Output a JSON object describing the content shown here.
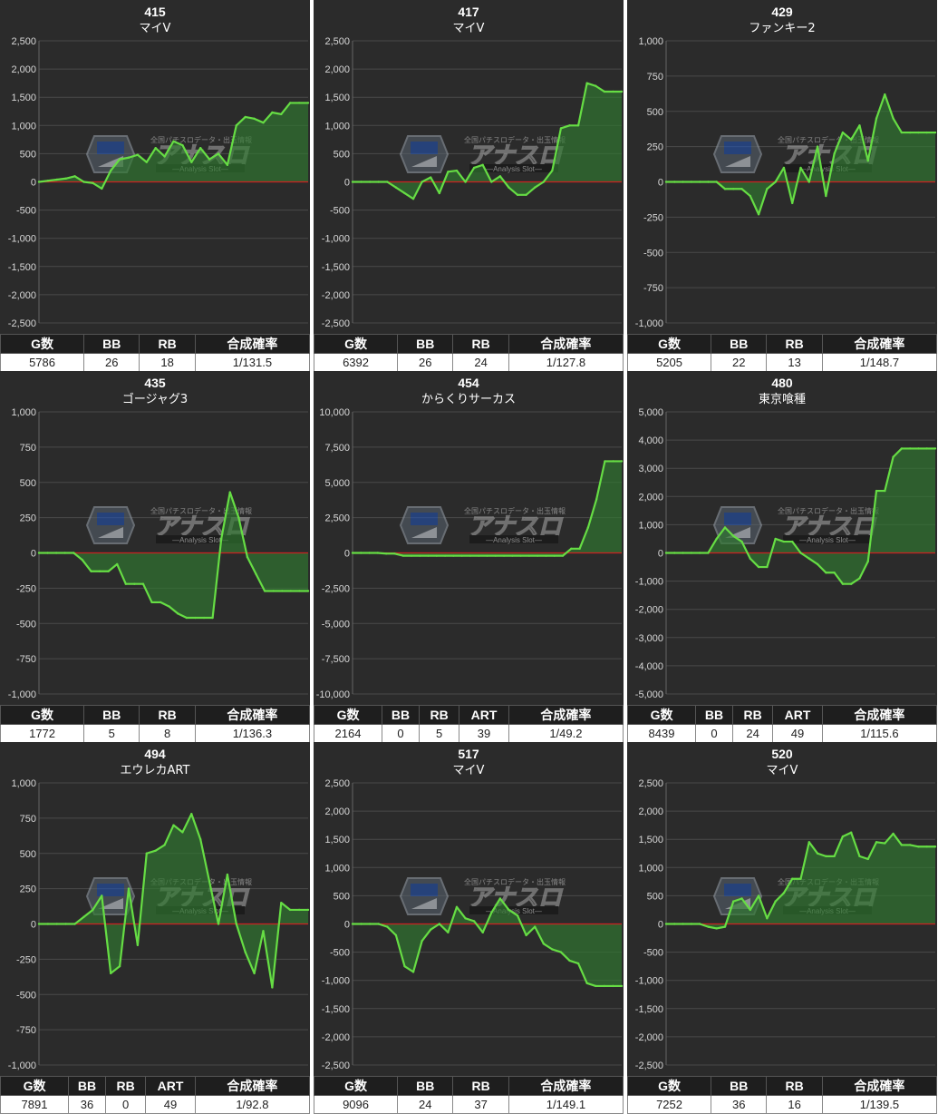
{
  "colors": {
    "background": "#2b2b2b",
    "grid": "#4a4a4a",
    "line": "#66dd44",
    "fill": "#2f7a2f",
    "zero_line": "#cc2222",
    "text": "#ffffff",
    "axis_text": "#d8d8d8"
  },
  "watermark": {
    "brand": "アナスロ",
    "tagline": "全国パチスロデータ・出玉情報",
    "subtitle": "—Analysis Slot—"
  },
  "chart_data": [
    {
      "type": "area",
      "title": "415",
      "subtitle": "マイV",
      "ylim": [
        -2500,
        2500
      ],
      "yticks": [
        2500,
        2000,
        1500,
        1000,
        500,
        0,
        -500,
        -1000,
        -1500,
        -2000,
        -2500
      ],
      "ytick_labels": [
        "2,500",
        "2,000",
        "1,500",
        "1,000",
        "500",
        "0",
        "-500",
        "-1,000",
        "-1,500",
        "-2,000",
        "-2,500"
      ],
      "y": [
        0,
        20,
        40,
        60,
        100,
        0,
        -20,
        -120,
        200,
        400,
        430,
        480,
        350,
        600,
        450,
        720,
        650,
        350,
        600,
        400,
        500,
        300,
        1000,
        1150,
        1120,
        1050,
        1230,
        1200,
        1400,
        1400,
        1400
      ],
      "stats": {
        "headers": [
          "G数",
          "BB",
          "RB",
          "合成確率"
        ],
        "values": [
          "5786",
          "26",
          "18",
          "1/131.5"
        ]
      }
    },
    {
      "type": "area",
      "title": "417",
      "subtitle": "マイV",
      "ylim": [
        -2500,
        2500
      ],
      "yticks": [
        2500,
        2000,
        1500,
        1000,
        500,
        0,
        -500,
        -1000,
        -1500,
        -2000,
        -2500
      ],
      "ytick_labels": [
        "2,500",
        "2,000",
        "1,500",
        "1,000",
        "500",
        "0",
        "-500",
        "-1,000",
        "-1,500",
        "-2,000",
        "-2,500"
      ],
      "y": [
        0,
        0,
        0,
        0,
        0,
        -100,
        -200,
        -300,
        0,
        80,
        -200,
        180,
        200,
        0,
        250,
        300,
        0,
        100,
        -100,
        -230,
        -230,
        -100,
        0,
        200,
        950,
        1000,
        1000,
        1750,
        1700,
        1600,
        1600,
        1600
      ],
      "stats": {
        "headers": [
          "G数",
          "BB",
          "RB",
          "合成確率"
        ],
        "values": [
          "6392",
          "26",
          "24",
          "1/127.8"
        ]
      }
    },
    {
      "type": "area",
      "title": "429",
      "subtitle": "ファンキー2",
      "ylim": [
        -1000,
        1000
      ],
      "yticks": [
        1000,
        750,
        500,
        250,
        0,
        -250,
        -500,
        -750,
        -1000
      ],
      "ytick_labels": [
        "1,000",
        "750",
        "500",
        "250",
        "0",
        "-250",
        "-500",
        "-750",
        "-1,000"
      ],
      "y": [
        0,
        0,
        0,
        0,
        0,
        0,
        0,
        -50,
        -50,
        -50,
        -100,
        -230,
        -50,
        0,
        100,
        -150,
        100,
        0,
        250,
        -100,
        200,
        350,
        300,
        400,
        150,
        450,
        620,
        450,
        350,
        350,
        350,
        350,
        350
      ],
      "stats": {
        "headers": [
          "G数",
          "BB",
          "RB",
          "合成確率"
        ],
        "values": [
          "5205",
          "22",
          "13",
          "1/148.7"
        ]
      }
    },
    {
      "type": "area",
      "title": "435",
      "subtitle": "ゴージャグ3",
      "ylim": [
        -1000,
        1000
      ],
      "yticks": [
        1000,
        750,
        500,
        250,
        0,
        -250,
        -500,
        -750,
        -1000
      ],
      "ytick_labels": [
        "1,000",
        "750",
        "500",
        "250",
        "0",
        "-250",
        "-500",
        "-750",
        "-1,000"
      ],
      "y": [
        0,
        0,
        0,
        0,
        0,
        -50,
        -130,
        -130,
        -130,
        -80,
        -220,
        -220,
        -220,
        -350,
        -350,
        -380,
        -430,
        -460,
        -460,
        -460,
        -460,
        100,
        430,
        250,
        -30,
        -150,
        -270,
        -270,
        -270,
        -270,
        -270,
        -270
      ],
      "stats": {
        "headers": [
          "G数",
          "BB",
          "RB",
          "合成確率"
        ],
        "values": [
          "1772",
          "5",
          "8",
          "1/136.3"
        ]
      }
    },
    {
      "type": "area",
      "title": "454",
      "subtitle": "からくりサーカス",
      "ylim": [
        -10000,
        10000
      ],
      "yticks": [
        10000,
        7500,
        5000,
        2500,
        0,
        -2500,
        -5000,
        -7500,
        -10000
      ],
      "ytick_labels": [
        "10,000",
        "7,500",
        "5,000",
        "2,500",
        "0",
        "-2,500",
        "-5,000",
        "-7,500",
        "-10,000"
      ],
      "y": [
        0,
        0,
        0,
        0,
        -50,
        -50,
        -200,
        -200,
        -200,
        -200,
        -200,
        -200,
        -200,
        -200,
        -200,
        -200,
        -200,
        -200,
        -200,
        -200,
        -200,
        -200,
        -200,
        -200,
        -200,
        -200,
        300,
        300,
        1800,
        3800,
        6500,
        6500,
        6500
      ],
      "stats": {
        "headers": [
          "G数",
          "BB",
          "RB",
          "ART",
          "合成確率"
        ],
        "values": [
          "2164",
          "0",
          "5",
          "39",
          "1/49.2"
        ]
      }
    },
    {
      "type": "area",
      "title": "480",
      "subtitle": "東京喰種",
      "ylim": [
        -5000,
        5000
      ],
      "yticks": [
        5000,
        4000,
        3000,
        2000,
        1000,
        0,
        -1000,
        -2000,
        -3000,
        -4000,
        -5000
      ],
      "ytick_labels": [
        "5,000",
        "4,000",
        "3,000",
        "2,000",
        "1,000",
        "0",
        "-1,000",
        "-2,000",
        "-3,000",
        "-4,000",
        "-5,000"
      ],
      "y": [
        0,
        0,
        0,
        0,
        0,
        0,
        500,
        900,
        600,
        400,
        -200,
        -500,
        -500,
        500,
        400,
        400,
        0,
        -200,
        -400,
        -700,
        -700,
        -1100,
        -1100,
        -900,
        -300,
        2200,
        2200,
        3400,
        3700,
        3700,
        3700,
        3700,
        3700
      ],
      "stats": {
        "headers": [
          "G数",
          "BB",
          "RB",
          "ART",
          "合成確率"
        ],
        "values": [
          "8439",
          "0",
          "24",
          "49",
          "1/115.6"
        ]
      }
    },
    {
      "type": "area",
      "title": "494",
      "subtitle": "エウレカART",
      "ylim": [
        -1000,
        1000
      ],
      "yticks": [
        1000,
        750,
        500,
        250,
        0,
        -250,
        -500,
        -750,
        -1000
      ],
      "ytick_labels": [
        "1,000",
        "750",
        "500",
        "250",
        "0",
        "-250",
        "-500",
        "-750",
        "-1,000"
      ],
      "y": [
        0,
        0,
        0,
        0,
        0,
        50,
        100,
        200,
        -350,
        -300,
        250,
        -150,
        500,
        520,
        560,
        700,
        650,
        780,
        600,
        300,
        0,
        350,
        0,
        -200,
        -350,
        -50,
        -450,
        150,
        100,
        100,
        100
      ],
      "stats": {
        "headers": [
          "G数",
          "BB",
          "RB",
          "ART",
          "合成確率"
        ],
        "values": [
          "7891",
          "36",
          "0",
          "49",
          "1/92.8"
        ]
      }
    },
    {
      "type": "area",
      "title": "517",
      "subtitle": "マイV",
      "ylim": [
        -2500,
        2500
      ],
      "yticks": [
        2500,
        2000,
        1500,
        1000,
        500,
        0,
        -500,
        -1000,
        -1500,
        -2000,
        -2500
      ],
      "ytick_labels": [
        "2,500",
        "2,000",
        "1,500",
        "1,000",
        "500",
        "0",
        "-500",
        "-1,000",
        "-1,500",
        "-2,000",
        "-2,500"
      ],
      "y": [
        0,
        0,
        0,
        0,
        -50,
        -200,
        -750,
        -850,
        -300,
        -100,
        0,
        -150,
        300,
        100,
        50,
        -150,
        200,
        450,
        250,
        150,
        -200,
        -50,
        -350,
        -450,
        -500,
        -650,
        -700,
        -1050,
        -1100,
        -1100,
        -1100,
        -1100
      ],
      "stats": {
        "headers": [
          "G数",
          "BB",
          "RB",
          "合成確率"
        ],
        "values": [
          "9096",
          "24",
          "37",
          "1/149.1"
        ]
      }
    },
    {
      "type": "area",
      "title": "520",
      "subtitle": "マイV",
      "ylim": [
        -2500,
        2500
      ],
      "yticks": [
        2500,
        2000,
        1500,
        1000,
        500,
        0,
        -500,
        -1000,
        -1500,
        -2000,
        -2500
      ],
      "ytick_labels": [
        "2,500",
        "2,000",
        "1,500",
        "1,000",
        "500",
        "0",
        "-500",
        "-1,000",
        "-1,500",
        "-2,000",
        "-2,500"
      ],
      "y": [
        0,
        0,
        0,
        0,
        0,
        -50,
        -80,
        -50,
        400,
        450,
        250,
        500,
        100,
        400,
        550,
        800,
        800,
        1450,
        1250,
        1200,
        1200,
        1550,
        1620,
        1200,
        1150,
        1450,
        1430,
        1600,
        1400,
        1400,
        1370,
        1370,
        1370
      ],
      "stats": {
        "headers": [
          "G数",
          "BB",
          "RB",
          "合成確率"
        ],
        "values": [
          "7252",
          "36",
          "16",
          "1/139.5"
        ]
      }
    }
  ]
}
